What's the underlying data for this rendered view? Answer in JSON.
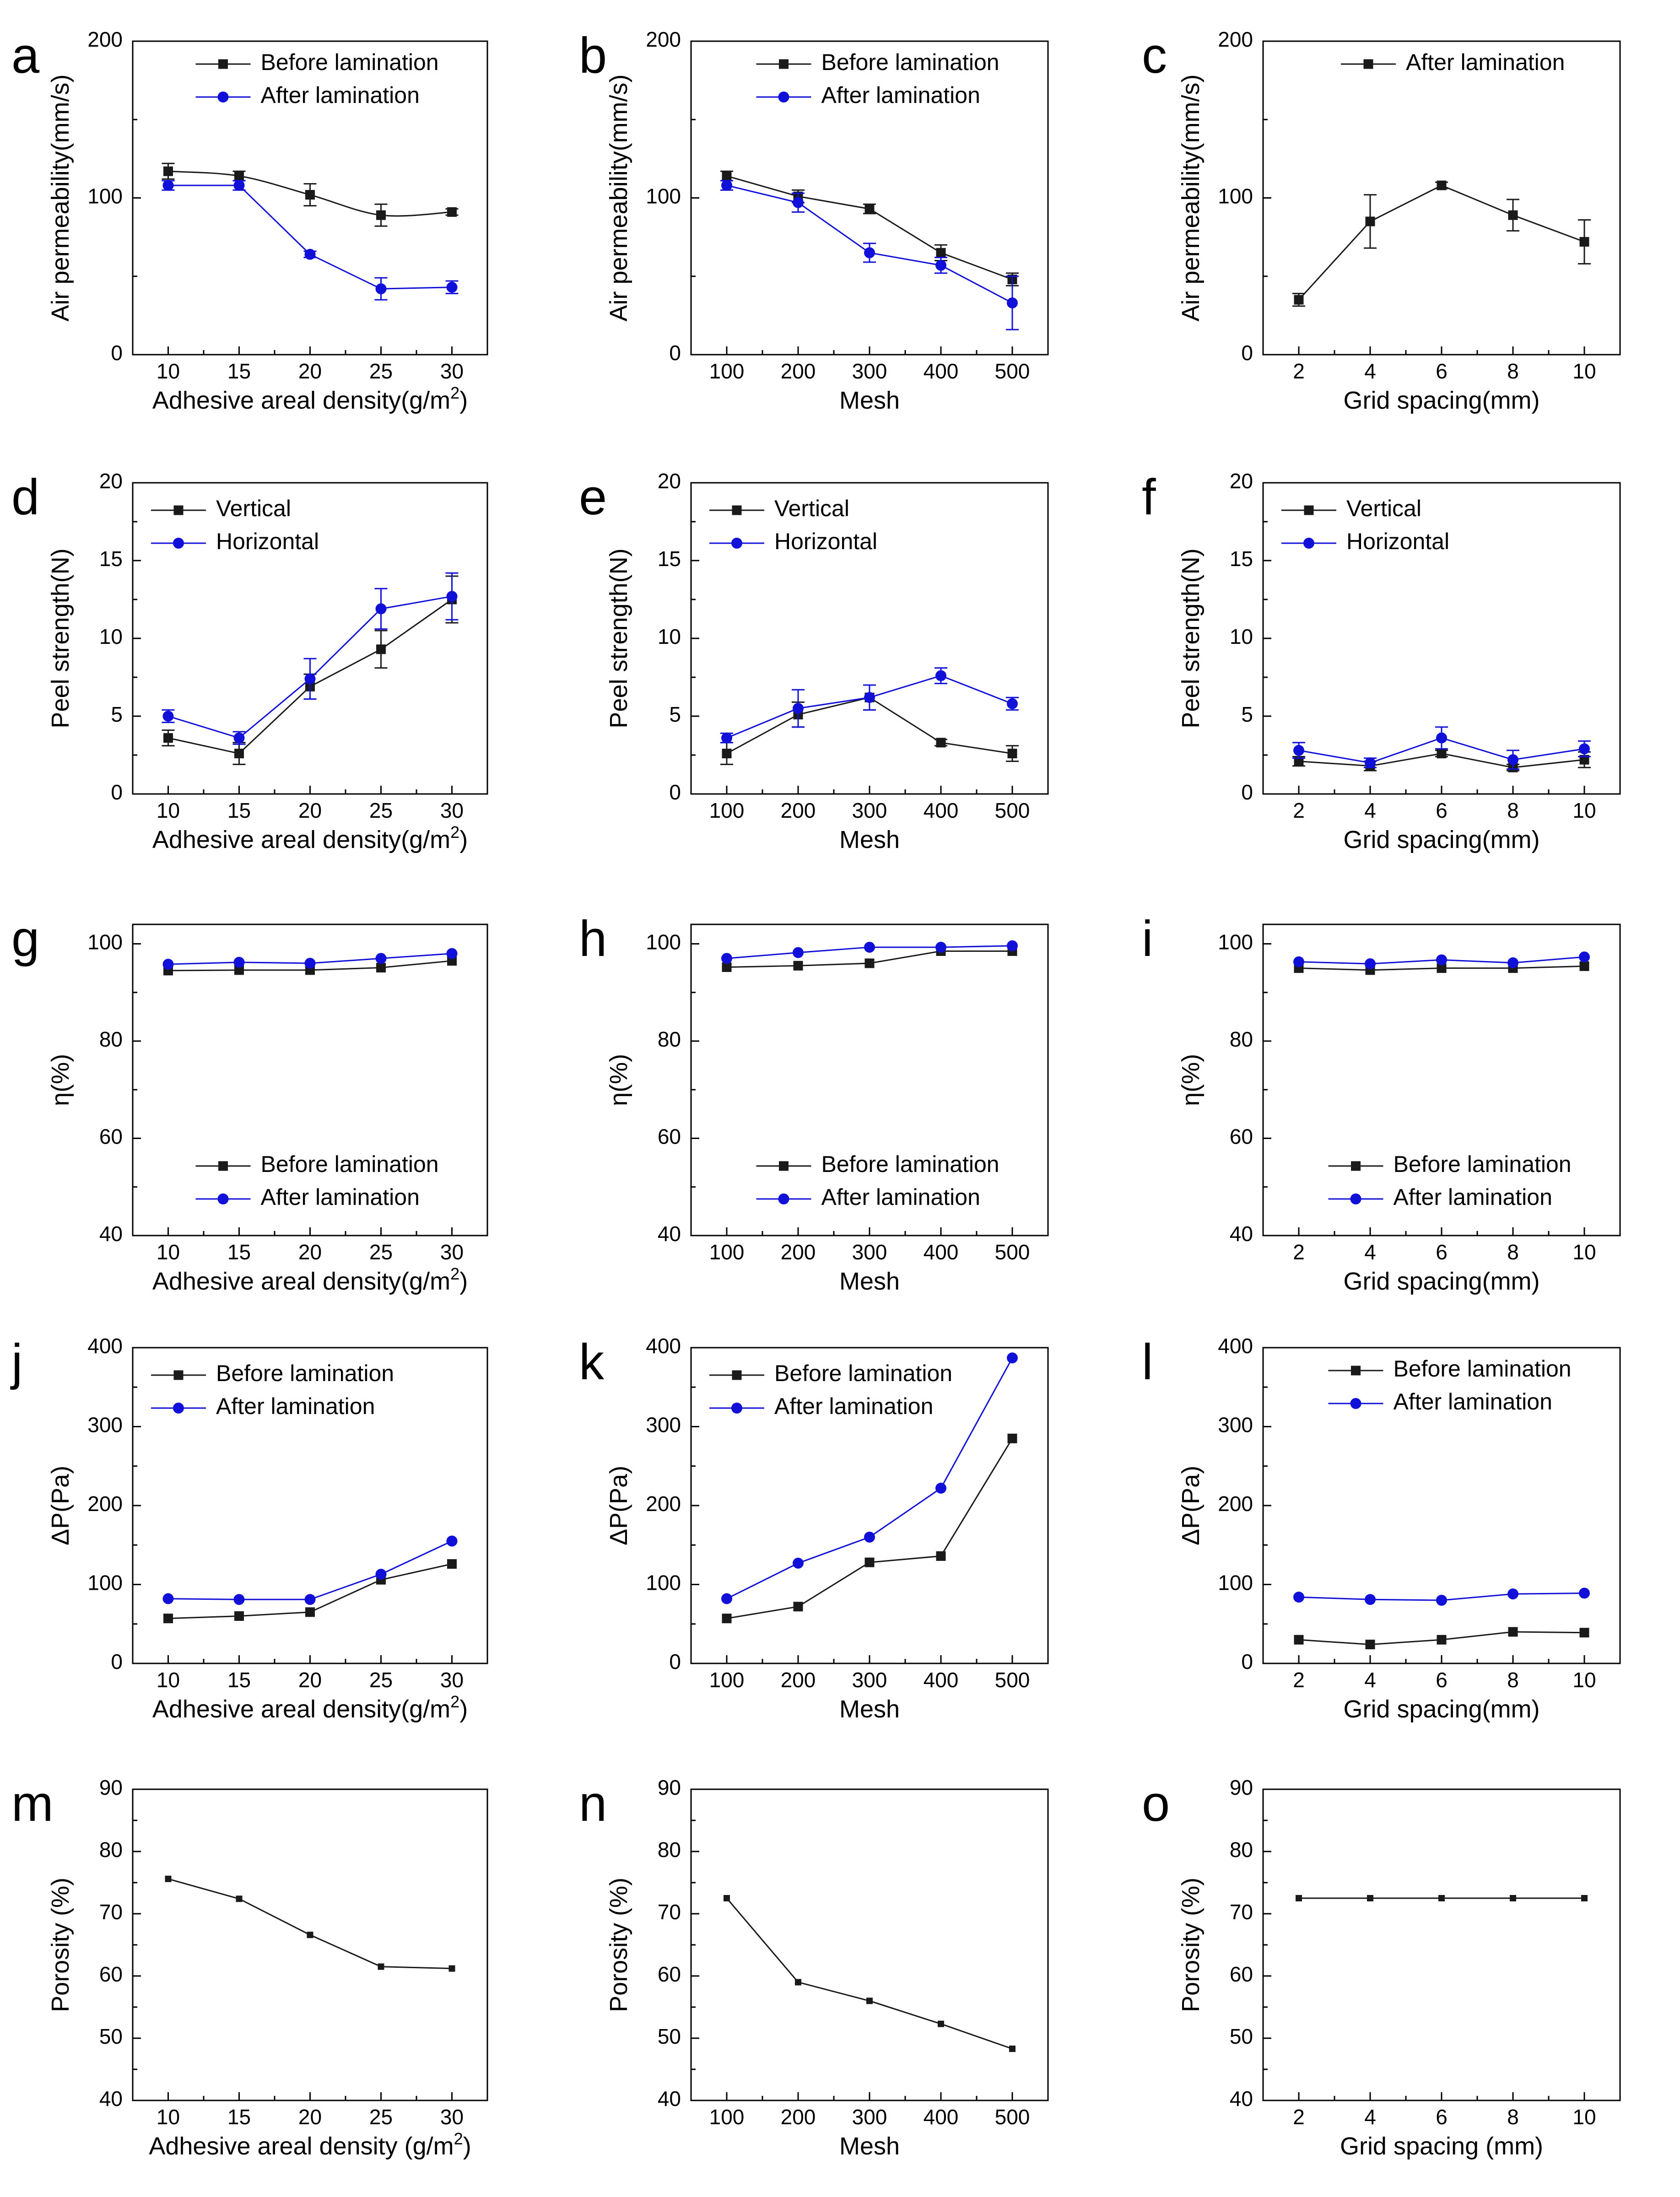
{
  "colors": {
    "black_series": "#1a1a1a",
    "blue_series": "#1010d8",
    "axis": "#000000"
  },
  "chart_data": [
    {
      "id": "a",
      "panel_label": "a",
      "type": "line",
      "ylabel": "Air permeability(mm/s)",
      "xlabel": "Adhesive areal density(g/m",
      "xlabel_sup": "2",
      "xlabel_end": ")",
      "categories": [
        "10",
        "15",
        "20",
        "25",
        "30"
      ],
      "yticks": [
        "0",
        "100",
        "200"
      ],
      "ylim": [
        0,
        200
      ],
      "legend_position": "top-right",
      "series": [
        {
          "name": "Before lamination",
          "color": "black",
          "marker": "square",
          "smooth": true,
          "values": [
            117,
            114,
            102,
            89,
            91
          ],
          "errors": [
            5,
            3,
            7,
            7,
            2
          ]
        },
        {
          "name": "After lamination",
          "color": "blue",
          "marker": "circle",
          "smooth": false,
          "values": [
            108,
            108,
            64,
            42,
            43
          ],
          "errors": [
            3,
            3,
            2,
            7,
            4
          ]
        }
      ]
    },
    {
      "id": "b",
      "panel_label": "b",
      "type": "line",
      "ylabel": "Air permeability(mm/s)",
      "xlabel": "Mesh",
      "categories": [
        "100",
        "200",
        "300",
        "400",
        "500"
      ],
      "yticks": [
        "0",
        "100",
        "200"
      ],
      "ylim": [
        0,
        200
      ],
      "legend_position": "top-right",
      "series": [
        {
          "name": "Before lamination",
          "color": "black",
          "marker": "square",
          "values": [
            114,
            101,
            93,
            65,
            48
          ],
          "errors": [
            3,
            4,
            3,
            5,
            4
          ]
        },
        {
          "name": "After lamination",
          "color": "blue",
          "marker": "circle",
          "values": [
            108,
            97,
            65,
            57,
            33
          ],
          "errors": [
            3,
            6,
            6,
            5,
            17
          ]
        }
      ]
    },
    {
      "id": "c",
      "panel_label": "c",
      "type": "line",
      "ylabel": "Air permeability(mm/s)",
      "xlabel": "Grid spacing(mm)",
      "categories": [
        "2",
        "4",
        "6",
        "8",
        "10"
      ],
      "yticks": [
        "0",
        "100",
        "200"
      ],
      "ylim": [
        0,
        200
      ],
      "legend_position": "top-right",
      "series": [
        {
          "name": "After lamination",
          "color": "black",
          "marker": "square",
          "values": [
            35,
            85,
            108,
            89,
            72
          ],
          "errors": [
            4,
            17,
            2,
            10,
            14
          ]
        }
      ]
    },
    {
      "id": "d",
      "panel_label": "d",
      "type": "line",
      "ylabel": "Peel strength(N)",
      "xlabel": "Adhesive areal density(g/m",
      "xlabel_sup": "2",
      "xlabel_end": ")",
      "categories": [
        "10",
        "15",
        "20",
        "25",
        "30"
      ],
      "yticks": [
        "0",
        "5",
        "10",
        "15",
        "20"
      ],
      "ylim": [
        0,
        20
      ],
      "legend_position": "top-left",
      "series": [
        {
          "name": "Vertical",
          "color": "black",
          "marker": "square",
          "values": [
            3.6,
            2.6,
            6.9,
            9.3,
            12.5
          ],
          "errors": [
            0.5,
            0.7,
            0.8,
            1.2,
            1.5
          ]
        },
        {
          "name": "Horizontal",
          "color": "blue",
          "marker": "circle",
          "values": [
            5.0,
            3.6,
            7.4,
            11.9,
            12.7
          ],
          "errors": [
            0.4,
            0.4,
            1.3,
            1.3,
            1.5
          ]
        }
      ]
    },
    {
      "id": "e",
      "panel_label": "e",
      "type": "line",
      "ylabel": "Peel strength(N)",
      "xlabel": "Mesh",
      "categories": [
        "100",
        "200",
        "300",
        "400",
        "500"
      ],
      "yticks": [
        "0",
        "5",
        "10",
        "15",
        "20"
      ],
      "ylim": [
        0,
        20
      ],
      "legend_position": "top-left",
      "series": [
        {
          "name": "Vertical",
          "color": "black",
          "marker": "square",
          "values": [
            2.6,
            5.1,
            6.2,
            3.3,
            2.6
          ],
          "errors": [
            0.7,
            0.8,
            0.8,
            0.2,
            0.5
          ]
        },
        {
          "name": "Horizontal",
          "color": "blue",
          "marker": "circle",
          "values": [
            3.6,
            5.5,
            6.2,
            7.6,
            5.8
          ],
          "errors": [
            0.3,
            1.2,
            0.8,
            0.5,
            0.4
          ]
        }
      ]
    },
    {
      "id": "f",
      "panel_label": "f",
      "type": "line",
      "ylabel": "Peel strength(N)",
      "xlabel": "Grid spacing(mm)",
      "categories": [
        "2",
        "4",
        "6",
        "8",
        "10"
      ],
      "yticks": [
        "0",
        "5",
        "10",
        "15",
        "20"
      ],
      "ylim": [
        0,
        20
      ],
      "legend_position": "top-left",
      "series": [
        {
          "name": "Vertical",
          "color": "black",
          "marker": "square",
          "values": [
            2.1,
            1.8,
            2.6,
            1.7,
            2.2
          ],
          "errors": [
            0.3,
            0.3,
            0.2,
            0.2,
            0.5
          ]
        },
        {
          "name": "Horizontal",
          "color": "blue",
          "marker": "circle",
          "values": [
            2.8,
            2.0,
            3.6,
            2.2,
            2.9
          ],
          "errors": [
            0.5,
            0.3,
            0.7,
            0.6,
            0.5
          ]
        }
      ]
    },
    {
      "id": "g",
      "panel_label": "g",
      "type": "line",
      "ylabel": "η(%)",
      "xlabel": "Adhesive areal density(g/m",
      "xlabel_sup": "2",
      "xlabel_end": ")",
      "categories": [
        "10",
        "15",
        "20",
        "25",
        "30"
      ],
      "yticks": [
        "40",
        "60",
        "80",
        "100"
      ],
      "ylim": [
        40,
        104
      ],
      "legend_position": "bottom-right",
      "series": [
        {
          "name": "Before lamination",
          "color": "black",
          "marker": "square",
          "values": [
            94.5,
            94.6,
            94.6,
            95.1,
            96.5
          ]
        },
        {
          "name": "After lamination",
          "color": "blue",
          "marker": "circle",
          "values": [
            95.8,
            96.2,
            96.0,
            97.0,
            98.0
          ]
        }
      ]
    },
    {
      "id": "h",
      "panel_label": "h",
      "type": "line",
      "ylabel": "η(%)",
      "xlabel": "Mesh",
      "categories": [
        "100",
        "200",
        "300",
        "400",
        "500"
      ],
      "yticks": [
        "40",
        "60",
        "80",
        "100"
      ],
      "ylim": [
        40,
        104
      ],
      "legend_position": "bottom-right",
      "series": [
        {
          "name": "Before lamination",
          "color": "black",
          "marker": "square",
          "values": [
            95.2,
            95.5,
            96.0,
            98.5,
            98.5
          ]
        },
        {
          "name": "After lamination",
          "color": "blue",
          "marker": "circle",
          "values": [
            97.0,
            98.2,
            99.3,
            99.3,
            99.6
          ]
        }
      ]
    },
    {
      "id": "i",
      "panel_label": "i",
      "type": "line",
      "ylabel": "η(%)",
      "xlabel": "Grid spacing(mm)",
      "categories": [
        "2",
        "4",
        "6",
        "8",
        "10"
      ],
      "yticks": [
        "40",
        "60",
        "80",
        "100"
      ],
      "ylim": [
        40,
        104
      ],
      "legend_position": "bottom-right",
      "series": [
        {
          "name": "Before lamination",
          "color": "black",
          "marker": "square",
          "values": [
            95.0,
            94.6,
            95.0,
            95.0,
            95.4
          ]
        },
        {
          "name": "After lamination",
          "color": "blue",
          "marker": "circle",
          "values": [
            96.3,
            95.9,
            96.7,
            96.1,
            97.3
          ]
        }
      ]
    },
    {
      "id": "j",
      "panel_label": "j",
      "type": "line",
      "ylabel": "ΔP(Pa)",
      "xlabel": "Adhesive areal density(g/m",
      "xlabel_sup": "2",
      "xlabel_end": ")",
      "categories": [
        "10",
        "15",
        "20",
        "25",
        "30"
      ],
      "yticks": [
        "0",
        "100",
        "200",
        "300",
        "400"
      ],
      "ylim": [
        0,
        400
      ],
      "legend_position": "top-left",
      "series": [
        {
          "name": "Before lamination",
          "color": "black",
          "marker": "square",
          "values": [
            57,
            60,
            65,
            106,
            126
          ]
        },
        {
          "name": "After lamination",
          "color": "blue",
          "marker": "circle",
          "values": [
            82,
            81,
            81,
            113,
            155
          ]
        }
      ]
    },
    {
      "id": "k",
      "panel_label": "k",
      "type": "line",
      "ylabel": "ΔP(Pa)",
      "xlabel": "Mesh",
      "categories": [
        "100",
        "200",
        "300",
        "400",
        "500"
      ],
      "yticks": [
        "0",
        "100",
        "200",
        "300",
        "400"
      ],
      "ylim": [
        0,
        400
      ],
      "legend_position": "top-left",
      "series": [
        {
          "name": "Before lamination",
          "color": "black",
          "marker": "square",
          "values": [
            57,
            72,
            128,
            136,
            285
          ]
        },
        {
          "name": "After lamination",
          "color": "blue",
          "marker": "circle",
          "values": [
            82,
            127,
            160,
            222,
            387
          ]
        }
      ]
    },
    {
      "id": "l",
      "panel_label": "l",
      "type": "line",
      "ylabel": "ΔP(Pa)",
      "xlabel": "Grid spacing(mm)",
      "categories": [
        "2",
        "4",
        "6",
        "8",
        "10"
      ],
      "yticks": [
        "0",
        "100",
        "200",
        "300",
        "400"
      ],
      "ylim": [
        0,
        400
      ],
      "legend_position": "top-right",
      "series": [
        {
          "name": "Before lamination",
          "color": "black",
          "marker": "square",
          "values": [
            30,
            24,
            30,
            40,
            39
          ]
        },
        {
          "name": "After lamination",
          "color": "blue",
          "marker": "circle",
          "values": [
            84,
            81,
            80,
            88,
            89
          ]
        }
      ]
    },
    {
      "id": "m",
      "panel_label": "m",
      "type": "line",
      "ylabel": "Porosity (%)",
      "xlabel": "Adhesive areal density (g/m",
      "xlabel_sup": "2",
      "xlabel_end": ")",
      "categories": [
        "10",
        "15",
        "20",
        "25",
        "30"
      ],
      "yticks": [
        "40",
        "50",
        "60",
        "70",
        "80",
        "90"
      ],
      "ylim": [
        40,
        90
      ],
      "series": [
        {
          "name": "",
          "color": "black",
          "marker": "square",
          "small": true,
          "values": [
            75.6,
            72.4,
            66.6,
            61.5,
            61.2
          ]
        }
      ]
    },
    {
      "id": "n",
      "panel_label": "n",
      "type": "line",
      "ylabel": "Porosity (%)",
      "xlabel": "Mesh",
      "categories": [
        "100",
        "200",
        "300",
        "400",
        "500"
      ],
      "yticks": [
        "40",
        "50",
        "60",
        "70",
        "80",
        "90"
      ],
      "ylim": [
        40,
        90
      ],
      "series": [
        {
          "name": "",
          "color": "black",
          "marker": "square",
          "small": true,
          "values": [
            72.5,
            59.0,
            56.0,
            52.3,
            48.3
          ]
        }
      ]
    },
    {
      "id": "o",
      "panel_label": "o",
      "type": "line",
      "ylabel": "Porosity (%)",
      "xlabel": "Grid spacing (mm)",
      "categories": [
        "2",
        "4",
        "6",
        "8",
        "10"
      ],
      "yticks": [
        "40",
        "50",
        "60",
        "70",
        "80",
        "90"
      ],
      "ylim": [
        40,
        90
      ],
      "series": [
        {
          "name": "",
          "color": "black",
          "marker": "square",
          "small": true,
          "values": [
            72.5,
            72.5,
            72.5,
            72.5,
            72.5
          ]
        }
      ]
    }
  ]
}
